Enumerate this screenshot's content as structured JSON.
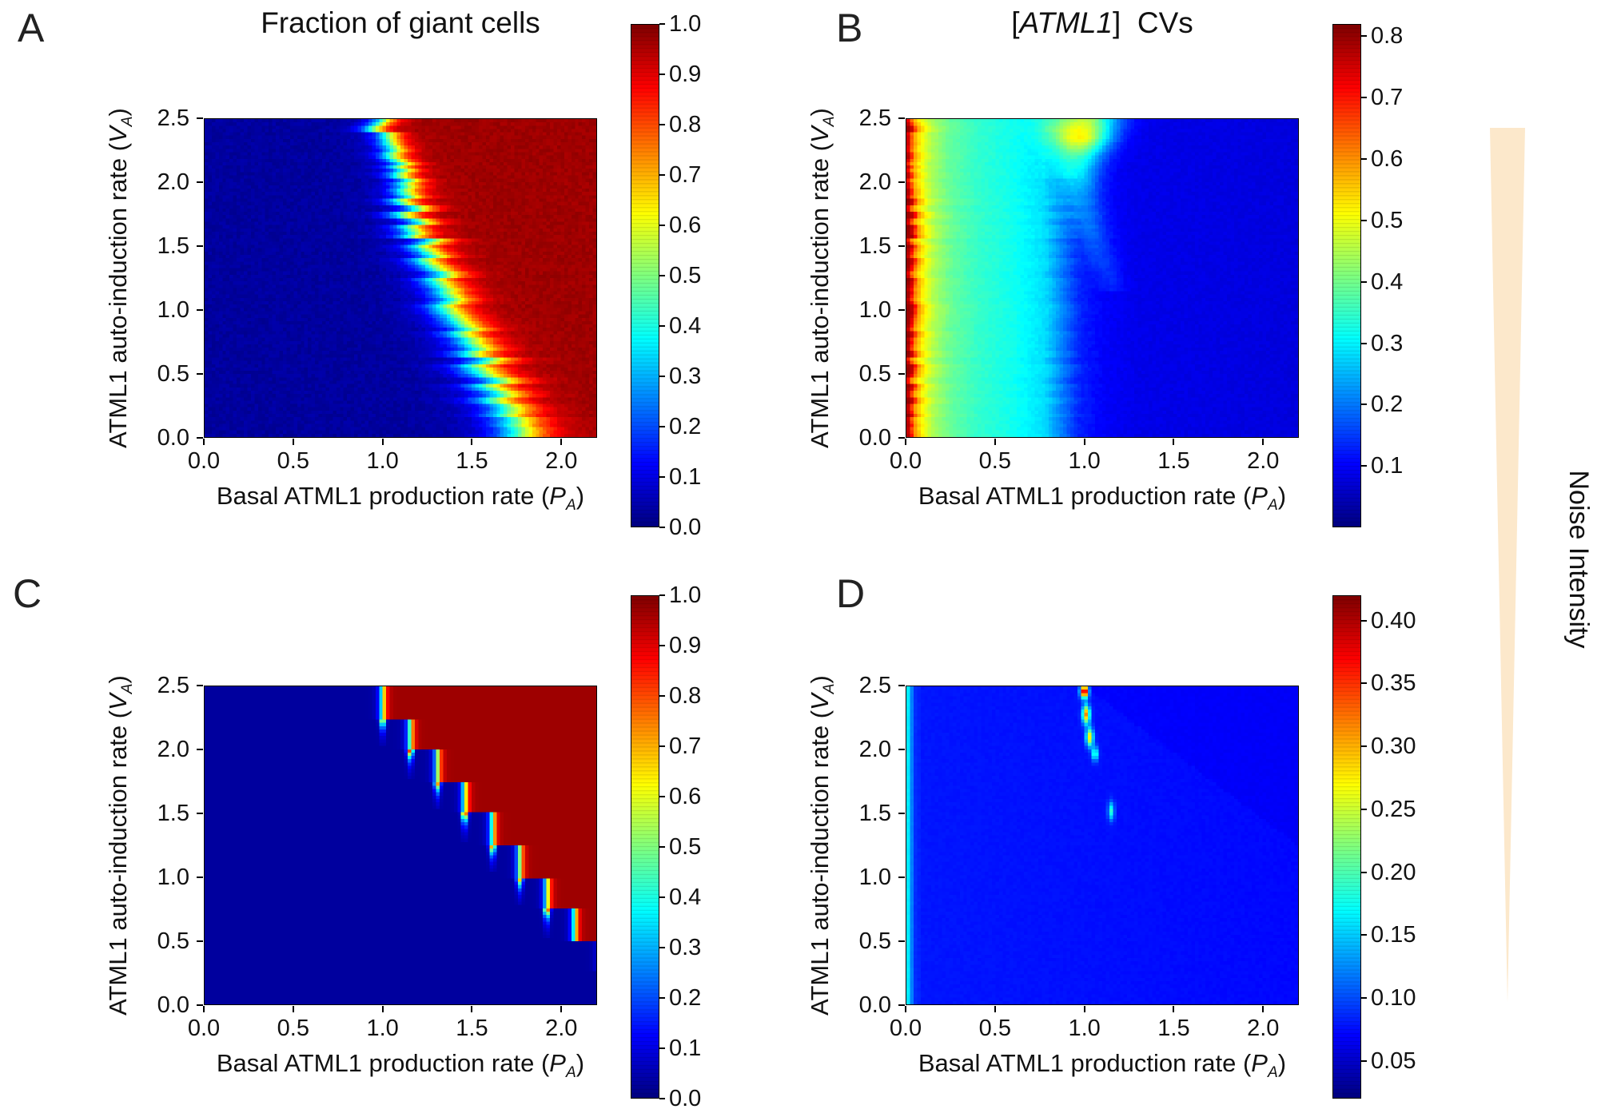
{
  "page": {
    "background": "#ffffff",
    "noise_axis": {
      "label": "Noise Intensity",
      "triangle_color": "#fce8cb"
    }
  },
  "chart_data": [
    {
      "panel_label": "A",
      "type": "heatmap",
      "title": {
        "pre": "Fraction of giant cells",
        "italic": "",
        "post": ""
      },
      "xlabel": {
        "pre": "Basal ATML1 production rate (",
        "var": "P",
        "sub": "A",
        "post": ")"
      },
      "ylabel": {
        "pre": "ATML1 auto-induction rate (",
        "var": "V",
        "sub": "A",
        "post": ")"
      },
      "xlim": [
        0,
        2.2
      ],
      "ylim": [
        0,
        2.5
      ],
      "xticks": [
        "0.0",
        "0.5",
        "1.0",
        "1.5",
        "2.0"
      ],
      "yticks": [
        "0.0",
        "0.5",
        "1.0",
        "1.5",
        "2.0",
        "2.5"
      ],
      "colormap": "jet",
      "colorbar": {
        "min": 0,
        "max": 1,
        "ticks": [
          "0.0",
          "0.1",
          "0.2",
          "0.3",
          "0.4",
          "0.5",
          "0.6",
          "0.7",
          "0.8",
          "0.9",
          "1.0"
        ]
      },
      "field": {
        "kind": "noisy_boundary",
        "ymax": 2.5,
        "boundary": [
          [
            0,
            1.78
          ],
          [
            0.5,
            1.6
          ],
          [
            1.0,
            1.42
          ],
          [
            1.5,
            1.25
          ],
          [
            2.0,
            1.1
          ],
          [
            2.5,
            0.96
          ]
        ],
        "width": 0.045,
        "width_grow": 0.02,
        "row_noise": 0.07,
        "cell_noise": 0.03,
        "low": 0.03,
        "high": 0.97
      }
    },
    {
      "panel_label": "B",
      "type": "heatmap",
      "title": {
        "pre": "[",
        "italic": "ATML1",
        "post": "]  CVs"
      },
      "xlabel": {
        "pre": "Basal ATML1 production rate (",
        "var": "P",
        "sub": "A",
        "post": ")"
      },
      "ylabel": {
        "pre": "ATML1 auto-induction rate (",
        "var": "V",
        "sub": "A",
        "post": ")"
      },
      "xlim": [
        0,
        2.2
      ],
      "ylim": [
        0,
        2.5
      ],
      "xticks": [
        "0.0",
        "0.5",
        "1.0",
        "1.5",
        "2.0"
      ],
      "yticks": [
        "0.0",
        "0.5",
        "1.0",
        "1.5",
        "2.0",
        "2.5"
      ],
      "colormap": "jet",
      "colorbar": {
        "min": 0,
        "max": 0.82,
        "ticks": [
          "0.1",
          "0.2",
          "0.3",
          "0.4",
          "0.5",
          "0.6",
          "0.7",
          "0.8"
        ]
      },
      "field": {
        "kind": "cv_bands",
        "profile": [
          [
            0,
            0.8
          ],
          [
            0.02,
            0.76
          ],
          [
            0.05,
            0.6
          ],
          [
            0.09,
            0.52
          ],
          [
            0.15,
            0.45
          ],
          [
            0.25,
            0.39
          ],
          [
            0.4,
            0.35
          ],
          [
            0.6,
            0.32
          ],
          [
            0.78,
            0.28
          ],
          [
            0.88,
            0.2
          ],
          [
            0.97,
            0.13
          ],
          [
            1.1,
            0.1
          ],
          [
            1.3,
            0.085
          ],
          [
            2.2,
            0.075
          ]
        ],
        "edge_jitter": 0.05,
        "noise": 0.015,
        "ridge": {
          "ymin": 1.15,
          "curve": [
            [
              1.15,
              1.17
            ],
            [
              1.5,
              1.07
            ],
            [
              1.8,
              1.0
            ],
            [
              2.1,
              0.96
            ],
            [
              2.5,
              1.0
            ]
          ],
          "amp": [
            [
              1.15,
              0.03
            ],
            [
              1.5,
              0.06
            ],
            [
              1.9,
              0.1
            ],
            [
              2.2,
              0.22
            ],
            [
              2.35,
              0.4
            ],
            [
              2.5,
              0.34
            ]
          ],
          "width": [
            [
              1.15,
              0.05
            ],
            [
              2.0,
              0.08
            ],
            [
              2.5,
              0.13
            ]
          ]
        }
      }
    },
    {
      "panel_label": "C",
      "type": "heatmap",
      "title": {
        "pre": "",
        "italic": "",
        "post": ""
      },
      "xlabel": {
        "pre": "Basal ATML1 production rate (",
        "var": "P",
        "sub": "A",
        "post": ")"
      },
      "ylabel": {
        "pre": "ATML1 auto-induction rate (",
        "var": "V",
        "sub": "A",
        "post": ")"
      },
      "xlim": [
        0,
        2.2
      ],
      "ylim": [
        0,
        2.5
      ],
      "xticks": [
        "0.0",
        "0.5",
        "1.0",
        "1.5",
        "2.0"
      ],
      "yticks": [
        "0.0",
        "0.5",
        "1.0",
        "1.5",
        "2.0",
        "2.5"
      ],
      "colormap": "jet",
      "colorbar": {
        "min": 0,
        "max": 1,
        "ticks": [
          "0.0",
          "0.1",
          "0.2",
          "0.3",
          "0.4",
          "0.5",
          "0.6",
          "0.7",
          "0.8",
          "0.9",
          "1.0"
        ]
      },
      "field": {
        "kind": "step_boundary",
        "ymax": 2.5,
        "ystep": 0.25,
        "x_top": 1.0,
        "step_dx": 0.154,
        "width": 0.013,
        "low": 0.03,
        "high": 0.97,
        "needles": 7,
        "needle_w": 0.012,
        "needle_decay": 0.06
      }
    },
    {
      "panel_label": "D",
      "type": "heatmap",
      "title": {
        "pre": "",
        "italic": "",
        "post": ""
      },
      "xlabel": {
        "pre": "Basal ATML1 production rate (",
        "var": "P",
        "sub": "A",
        "post": ")"
      },
      "ylabel": {
        "pre": "ATML1 auto-induction rate (",
        "var": "V",
        "sub": "A",
        "post": ")"
      },
      "xlim": [
        0,
        2.2
      ],
      "ylim": [
        0,
        2.5
      ],
      "xticks": [
        "0.0",
        "0.5",
        "1.0",
        "1.5",
        "2.0"
      ],
      "yticks": [
        "0.0",
        "0.5",
        "1.0",
        "1.5",
        "2.0",
        "2.5"
      ],
      "colormap": "jet",
      "colorbar": {
        "min": 0.02,
        "max": 0.42,
        "ticks": [
          "0.05",
          "0.10",
          "0.15",
          "0.20",
          "0.25",
          "0.30",
          "0.35",
          "0.40"
        ]
      },
      "field": {
        "kind": "cv_flat",
        "profile": [
          [
            0,
            0.17
          ],
          [
            0.018,
            0.155
          ],
          [
            0.04,
            0.09
          ],
          [
            0.09,
            0.078
          ],
          [
            2.2,
            0.072
          ]
        ],
        "noise": 0.004,
        "shade": -0.005,
        "shade_line": [
          [
            0,
            3.0
          ],
          [
            1.25,
            2.2
          ],
          [
            2.5,
            1.0
          ]
        ],
        "spots": [
          {
            "x": 1.0,
            "y": 2.46,
            "amp": 0.36,
            "wx": 0.015,
            "wy": 0.035
          },
          {
            "x": 1.01,
            "y": 2.28,
            "amp": 0.24,
            "wx": 0.015,
            "wy": 0.05
          },
          {
            "x": 1.03,
            "y": 2.1,
            "amp": 0.2,
            "wx": 0.014,
            "wy": 0.05
          },
          {
            "x": 1.06,
            "y": 1.97,
            "amp": 0.13,
            "wx": 0.012,
            "wy": 0.04
          },
          {
            "x": 1.15,
            "y": 1.52,
            "amp": 0.11,
            "wx": 0.012,
            "wy": 0.05
          }
        ]
      }
    }
  ]
}
